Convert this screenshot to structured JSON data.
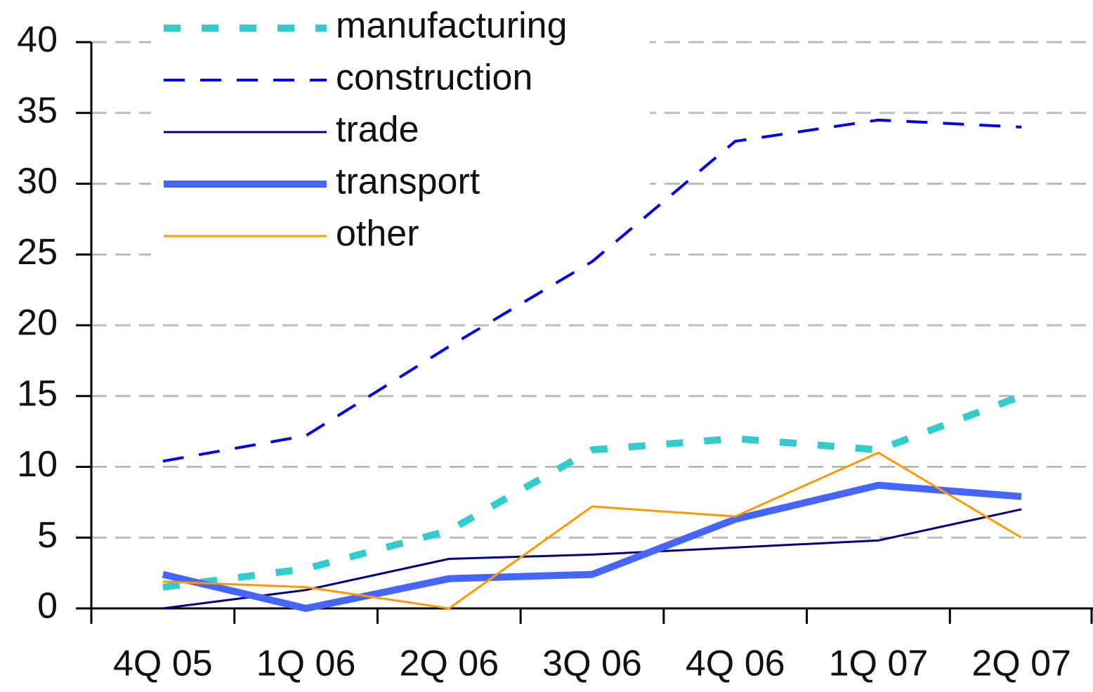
{
  "chart_data": {
    "type": "line",
    "categories": [
      "4Q 05",
      "1Q 06",
      "2Q 06",
      "3Q 06",
      "4Q 06",
      "1Q 07",
      "2Q 07"
    ],
    "series": [
      {
        "name": "manufacturing",
        "color": "#33cccc",
        "values": [
          1.5,
          2.8,
          5.5,
          11.2,
          12,
          11.2,
          15
        ]
      },
      {
        "name": "construction",
        "color": "#0000ee",
        "values": [
          10.4,
          12.2,
          18.5,
          24.5,
          33,
          34.5,
          34
        ]
      },
      {
        "name": "trade",
        "color": "#000080",
        "values": [
          0,
          1.3,
          3.5,
          3.8,
          4.3,
          4.8,
          7
        ]
      },
      {
        "name": "transport",
        "color": "#4466ff",
        "values": [
          2.4,
          0,
          2.1,
          2.4,
          6.3,
          8.7,
          7.9
        ]
      },
      {
        "name": "other",
        "color": "#ff9900",
        "values": [
          1.9,
          1.5,
          0,
          7.2,
          6.5,
          11,
          5
        ]
      }
    ],
    "ylim": [
      0,
      40
    ],
    "yticks": [
      0,
      5,
      10,
      15,
      20,
      25,
      30,
      35,
      40
    ],
    "grid": true,
    "legend": "top-left"
  }
}
